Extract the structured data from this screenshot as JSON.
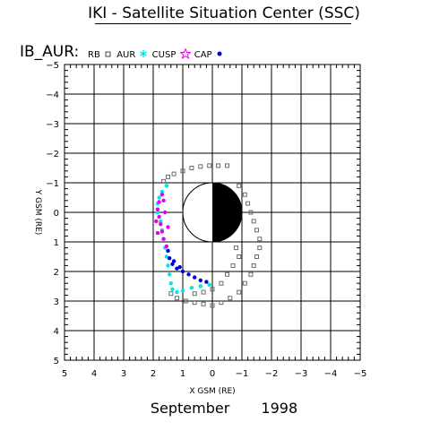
{
  "header": {
    "title": "IKI - Satellite Situation Center (SSC)"
  },
  "figure": {
    "panel_label": "IB_AUR:",
    "legend": [
      {
        "name": "RB",
        "symbol": "dot",
        "color": "#404040"
      },
      {
        "name": "AUR",
        "symbol": "square",
        "color": "#404040"
      },
      {
        "name": "CUSP",
        "symbol": "star6",
        "color": "#00e5e5"
      },
      {
        "name": "CAP",
        "symbol": "star5",
        "color": "#e500e5"
      },
      {
        "name": "",
        "symbol": "dot",
        "color": "#0000e0"
      }
    ]
  },
  "footer": {
    "month": "September",
    "year": "1998"
  },
  "chart_data": {
    "type": "scatter",
    "xlabel": "X GSM (RE)",
    "ylabel": "Y GSM (RE)",
    "xlim": [
      5,
      -5
    ],
    "ylim": [
      -5,
      5
    ],
    "xticks": [
      5,
      4,
      3,
      2,
      1,
      0,
      -1,
      -2,
      -3,
      -4,
      -5
    ],
    "yticks": [
      -5,
      -4,
      -3,
      -2,
      -1,
      0,
      1,
      2,
      3,
      4,
      5
    ],
    "xtick_labels": [
      "5",
      "4",
      "3",
      "2",
      "1",
      "0",
      "−1",
      "−2",
      "−3",
      "−4",
      "−5"
    ],
    "ytick_labels": [
      "−5",
      "−4",
      "−3",
      "−2",
      "−1",
      "0",
      "1",
      "2",
      "3",
      "4",
      "5"
    ],
    "grid": true,
    "earth": {
      "radius": 1,
      "night_side": "negative-x"
    },
    "series": [
      {
        "name": "AUR",
        "color": "#6a6a6a",
        "points": [
          [
            -0.5,
            -1.58
          ],
          [
            -0.2,
            -1.58
          ],
          [
            0.1,
            -1.58
          ],
          [
            0.4,
            -1.55
          ],
          [
            0.7,
            -1.5
          ],
          [
            1.0,
            -1.4
          ],
          [
            1.3,
            -1.3
          ],
          [
            1.5,
            -1.2
          ],
          [
            1.65,
            -1.05
          ],
          [
            -0.9,
            -0.9
          ],
          [
            -1.1,
            -0.6
          ],
          [
            -1.2,
            -0.3
          ],
          [
            -1.3,
            0.0
          ],
          [
            -1.4,
            0.3
          ],
          [
            -1.5,
            0.6
          ],
          [
            -1.6,
            0.9
          ],
          [
            -1.6,
            1.2
          ],
          [
            -1.5,
            1.5
          ],
          [
            -1.4,
            1.8
          ],
          [
            -1.3,
            2.1
          ],
          [
            -1.1,
            2.4
          ],
          [
            -0.9,
            2.7
          ],
          [
            -0.6,
            2.9
          ],
          [
            -0.3,
            3.05
          ],
          [
            0.0,
            3.15
          ],
          [
            0.3,
            3.1
          ],
          [
            0.6,
            3.05
          ],
          [
            0.9,
            3.0
          ],
          [
            1.2,
            2.9
          ],
          [
            1.4,
            2.75
          ],
          [
            -0.8,
            1.2
          ],
          [
            -0.9,
            1.5
          ],
          [
            -0.7,
            1.8
          ],
          [
            -0.5,
            2.1
          ],
          [
            -0.3,
            2.4
          ],
          [
            0.0,
            2.6
          ],
          [
            0.3,
            2.7
          ],
          [
            0.6,
            2.75
          ]
        ]
      },
      {
        "name": "CUSP",
        "color": "#00e5e5",
        "points": [
          [
            1.55,
            -0.9
          ],
          [
            1.7,
            -0.7
          ],
          [
            1.8,
            -0.5
          ],
          [
            1.85,
            -0.3
          ],
          [
            1.85,
            0.0
          ],
          [
            1.75,
            0.3
          ],
          [
            1.7,
            0.6
          ],
          [
            1.65,
            0.9
          ],
          [
            1.6,
            1.2
          ],
          [
            1.55,
            1.5
          ],
          [
            1.5,
            1.8
          ],
          [
            1.45,
            2.1
          ],
          [
            1.4,
            2.4
          ],
          [
            1.35,
            2.6
          ],
          [
            1.2,
            2.7
          ],
          [
            1.0,
            2.65
          ],
          [
            0.7,
            2.55
          ],
          [
            0.4,
            2.5
          ],
          [
            0.1,
            2.45
          ]
        ]
      },
      {
        "name": "CAP",
        "color": "#e500e5",
        "points": [
          [
            1.7,
            -0.6
          ],
          [
            1.8,
            -0.35
          ],
          [
            1.85,
            -0.1
          ],
          [
            1.8,
            0.15
          ],
          [
            1.75,
            0.4
          ],
          [
            1.7,
            0.65
          ],
          [
            1.65,
            0.9
          ],
          [
            1.55,
            1.15
          ],
          [
            1.5,
            0.5
          ],
          [
            1.6,
            0.0
          ],
          [
            1.65,
            -0.4
          ],
          [
            1.9,
            0.3
          ],
          [
            1.85,
            0.7
          ]
        ]
      },
      {
        "name": "",
        "color": "#0000e0",
        "points": [
          [
            1.5,
            1.3
          ],
          [
            1.45,
            1.55
          ],
          [
            1.35,
            1.75
          ],
          [
            1.2,
            1.9
          ],
          [
            1.0,
            2.0
          ],
          [
            0.8,
            2.1
          ],
          [
            0.6,
            2.2
          ],
          [
            0.4,
            2.3
          ],
          [
            0.2,
            2.35
          ],
          [
            1.3,
            1.65
          ],
          [
            1.1,
            1.85
          ]
        ]
      }
    ]
  }
}
